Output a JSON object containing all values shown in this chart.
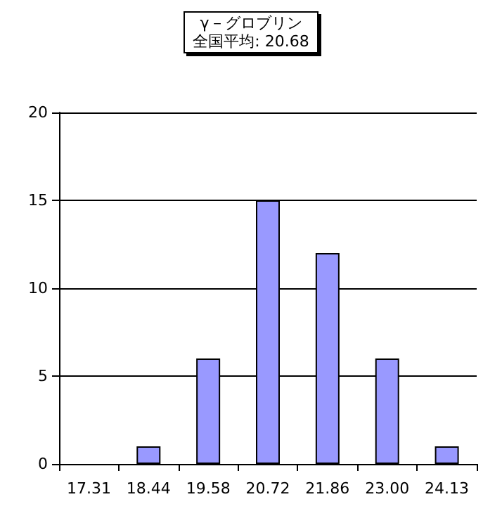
{
  "chart_data": {
    "type": "bar",
    "title": "γ－グロブリン",
    "subtitle": "全国平均: 20.68",
    "categories": [
      "17.31",
      "18.44",
      "19.58",
      "20.72",
      "21.86",
      "23.00",
      "24.13"
    ],
    "values": [
      0,
      1,
      6,
      15,
      12,
      6,
      1
    ],
    "color": "#9999ff",
    "ylim": [
      0,
      20
    ],
    "yticks": [
      0,
      5,
      10,
      15,
      20
    ],
    "grid": "y"
  }
}
